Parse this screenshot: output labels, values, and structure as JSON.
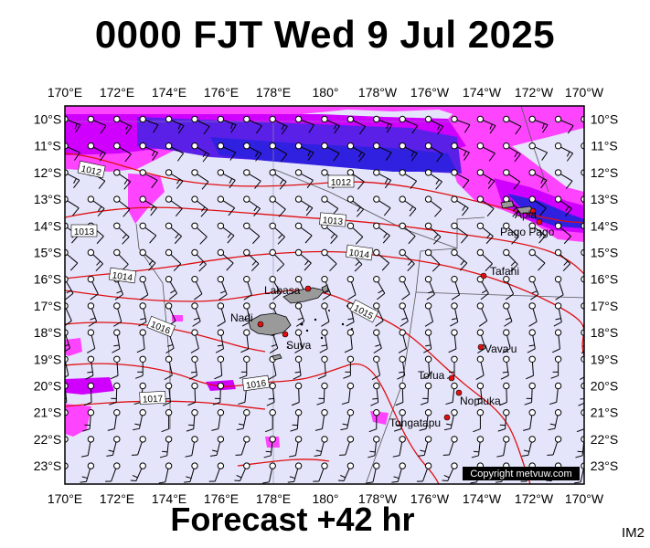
{
  "header": {
    "title": "0000 FJT Wed 9 Jul 2025"
  },
  "footer": {
    "subtitle": "Forecast +42 hr",
    "corner_code": "IM2",
    "copyright": "Copyright metvuw.com"
  },
  "axes": {
    "lon_labels": [
      "170°E",
      "172°E",
      "174°E",
      "176°E",
      "178°E",
      "180°",
      "178°W",
      "176°W",
      "174°W",
      "172°W",
      "170°W"
    ],
    "lat_labels": [
      "10°S",
      "11°S",
      "12°S",
      "13°S",
      "14°S",
      "15°S",
      "16°S",
      "17°S",
      "18°S",
      "19°S",
      "20°S",
      "21°S",
      "22°S",
      "23°S"
    ]
  },
  "isobars": [
    {
      "label": "1012"
    },
    {
      "label": "1012"
    },
    {
      "label": "1013"
    },
    {
      "label": "1013"
    },
    {
      "label": "1014"
    },
    {
      "label": "1014"
    },
    {
      "label": "1015"
    },
    {
      "label": "1016"
    },
    {
      "label": "1016"
    },
    {
      "label": "1017"
    }
  ],
  "places": [
    {
      "name": "Labasa"
    },
    {
      "name": "Nadi"
    },
    {
      "name": "Suva"
    },
    {
      "name": "Apia"
    },
    {
      "name": "Pago Pago"
    },
    {
      "name": "Tafahi"
    },
    {
      "name": "Vava'u"
    },
    {
      "name": "Tofua"
    },
    {
      "name": "Nomuka"
    },
    {
      "name": "Tongatapu"
    }
  ],
  "colors": {
    "ocean": "#e4e4fb",
    "rain_light": "#ff44ff",
    "rain_mid": "#d000ff",
    "rain_heavy": "#3020e0",
    "isobar": "#e01010"
  }
}
